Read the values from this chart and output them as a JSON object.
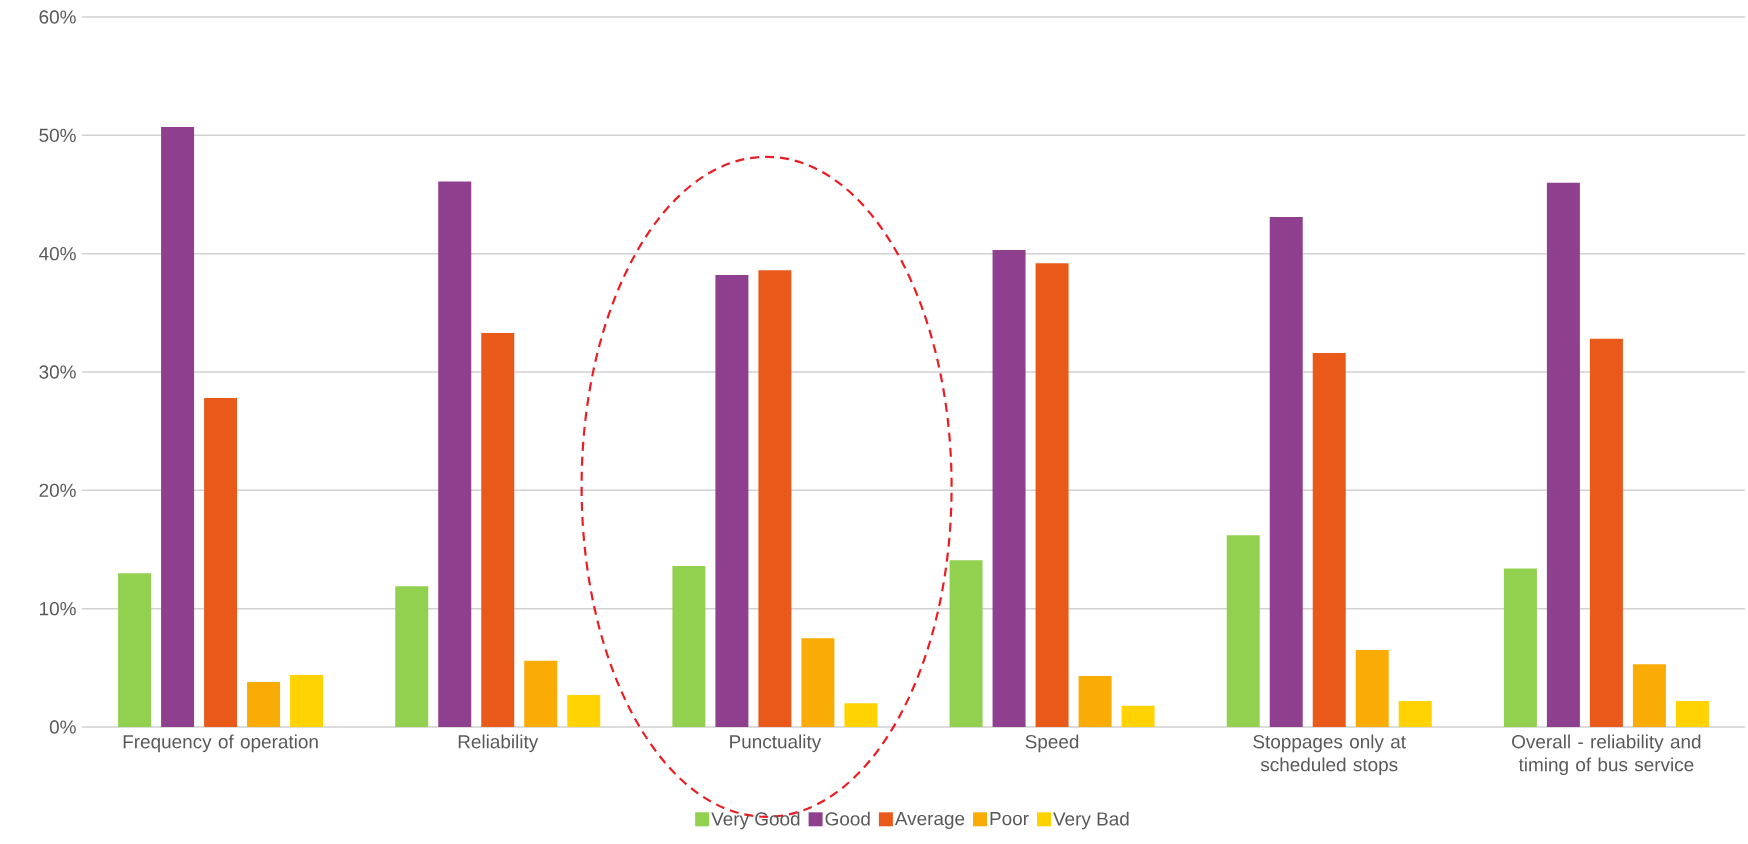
{
  "chart_data": {
    "type": "bar",
    "categories": [
      "Frequency of operation",
      "Reliability",
      "Punctuality",
      "Speed",
      "Stoppages only at scheduled stops",
      "Overall - reliability and timing of bus service"
    ],
    "series": [
      {
        "name": "Very Good",
        "color": "#92d050",
        "values": [
          13.0,
          11.9,
          13.6,
          14.1,
          16.2,
          13.4
        ]
      },
      {
        "name": "Good",
        "color": "#8e3f8e",
        "values": [
          50.7,
          46.1,
          38.2,
          40.3,
          43.1,
          46.0
        ]
      },
      {
        "name": "Average",
        "color": "#e8591a",
        "values": [
          27.8,
          33.3,
          38.6,
          39.2,
          31.6,
          32.8
        ]
      },
      {
        "name": "Poor",
        "color": "#f9ab06",
        "values": [
          3.8,
          5.6,
          7.5,
          4.3,
          6.5,
          5.3
        ]
      },
      {
        "name": "Very Bad",
        "color": "#ffd200",
        "values": [
          4.4,
          2.7,
          2.0,
          1.8,
          2.2,
          2.2
        ]
      }
    ],
    "ylim": [
      0,
      60
    ],
    "yticks": [
      {
        "value": 0,
        "label": "0%"
      },
      {
        "value": 10,
        "label": "10%"
      },
      {
        "value": 20,
        "label": "20%"
      },
      {
        "value": 30,
        "label": "30%"
      },
      {
        "value": 40,
        "label": "40%"
      },
      {
        "value": 50,
        "label": "50%"
      },
      {
        "value": 60,
        "label": "60%"
      }
    ],
    "grid": "y",
    "legend": "bottom"
  }
}
